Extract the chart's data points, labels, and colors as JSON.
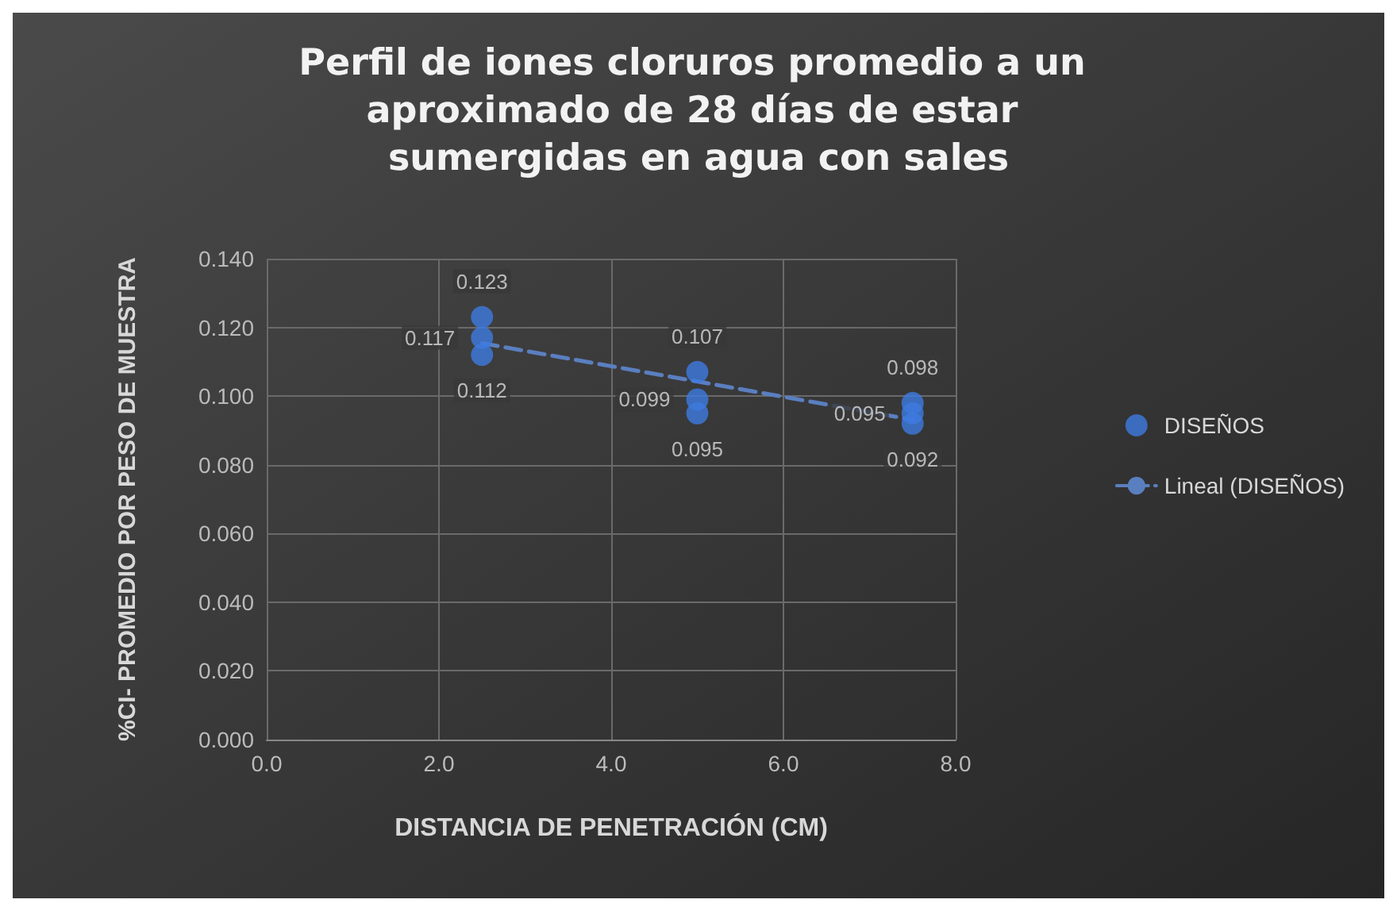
{
  "chart_data": {
    "type": "scatter",
    "title": "Perfil de iones cloruros promedio a un aproximado de 28 días de estar sumergidas en agua con sales",
    "xlabel": "DISTANCIA DE PENETRACIÓN (CM)",
    "ylabel": "%CI- PROMEDIO POR PESO DE MUESTRA",
    "x": [
      2.5,
      2.5,
      2.5,
      5,
      5,
      5,
      7.5,
      7.5,
      7.5
    ],
    "series": [
      {
        "name": "DISEÑOS",
        "color": "#3d7be0",
        "values": [
          0.123,
          0.117,
          0.112,
          0.107,
          0.099,
          0.095,
          0.098,
          0.095,
          0.092
        ],
        "value_labels": [
          "0.123",
          "0.117",
          "0.112",
          "0.107",
          "0.099",
          "0.095",
          "0.098",
          "0.095",
          "0.092"
        ]
      },
      {
        "name": "Lineal (DISEÑOS)",
        "type": "line",
        "color": "#5a7fc0",
        "line_style": "dashed",
        "marker": "none",
        "x": [
          2.5,
          7.5
        ],
        "values": [
          0.1154,
          0.0931
        ]
      }
    ],
    "xlim": [
      0,
      8
    ],
    "xticks": [
      {
        "value": 0,
        "label": "0.0"
      },
      {
        "value": 2,
        "label": "2.0"
      },
      {
        "value": 4,
        "label": "4.0"
      },
      {
        "value": 6,
        "label": "6.0"
      },
      {
        "value": 8,
        "label": "8.0"
      }
    ],
    "ylim": [
      0,
      0.14
    ],
    "yticks": [
      {
        "value": 0,
        "label": "0.000"
      },
      {
        "value": 0.02,
        "label": "0.020"
      },
      {
        "value": 0.04,
        "label": "0.040"
      },
      {
        "value": 0.06,
        "label": "0.060"
      },
      {
        "value": 0.08,
        "label": "0.080"
      },
      {
        "value": 0.1,
        "label": "0.100"
      },
      {
        "value": 0.12,
        "label": "0.120"
      },
      {
        "value": 0.14,
        "label": "0.140"
      }
    ],
    "grid": true,
    "legend": "right",
    "marker": "circle"
  }
}
